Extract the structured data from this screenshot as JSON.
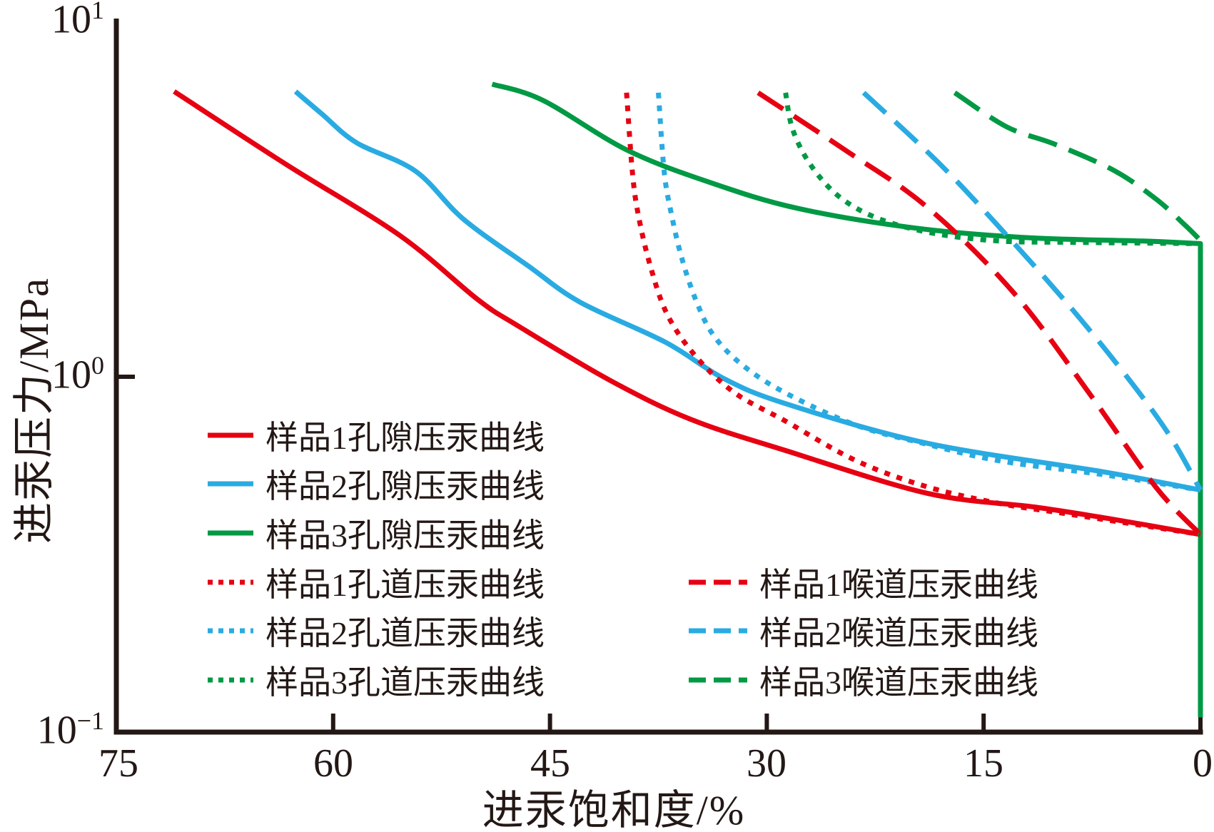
{
  "axes": {
    "x": {
      "title": "进汞饱和度/%",
      "ticks": [
        "75",
        "60",
        "45",
        "30",
        "15",
        "0"
      ],
      "values": [
        75,
        60,
        45,
        30,
        15,
        0
      ]
    },
    "y": {
      "title": "进汞压力/MPa",
      "ticks": [
        {
          "base": "10",
          "exp": "1"
        },
        {
          "base": "10",
          "exp": "0"
        },
        {
          "base": "10",
          "exp": "−1"
        }
      ],
      "mark_values": [
        1
      ]
    }
  },
  "colors": {
    "axis": "#231815",
    "red": "#e60012",
    "blue": "#29abe2",
    "green": "#009944"
  },
  "chart_data": {
    "type": "line",
    "title": "",
    "xlabel": "进汞饱和度/%",
    "ylabel": "进汞压力/MPa",
    "xlim": [
      75,
      0
    ],
    "ylim": [
      0.1,
      10
    ],
    "y_scale": "log",
    "grid": false,
    "legend_position": "inside-lower-left-two-columns",
    "series": [
      {
        "id": "sample1-pore",
        "label": "样品1孔隙压汞曲线",
        "color": "#e60012",
        "dash": "solid",
        "points": [
          [
            71.0,
            6.35
          ],
          [
            63.3,
            3.97
          ],
          [
            55.4,
            2.5
          ],
          [
            50.0,
            1.65
          ],
          [
            47.2,
            1.39
          ],
          [
            40.9,
            0.98
          ],
          [
            35.3,
            0.76
          ],
          [
            28.7,
            0.62
          ],
          [
            18.9,
            0.47
          ],
          [
            11.5,
            0.43
          ],
          [
            6.5,
            0.4
          ],
          [
            0,
            0.36
          ]
        ]
      },
      {
        "id": "sample2-pore",
        "label": "样品2孔隙压汞曲线",
        "color": "#29abe2",
        "dash": "solid",
        "points": [
          [
            62.6,
            6.35
          ],
          [
            60.8,
            5.5
          ],
          [
            58.4,
            4.56
          ],
          [
            54.3,
            3.79
          ],
          [
            51.0,
            2.78
          ],
          [
            46.5,
            2.05
          ],
          [
            42.9,
            1.62
          ],
          [
            37.0,
            1.25
          ],
          [
            33.0,
            0.99
          ],
          [
            28.7,
            0.84
          ],
          [
            18.9,
            0.65
          ],
          [
            6.7,
            0.54
          ],
          [
            0,
            0.48
          ]
        ]
      },
      {
        "id": "sample3-pore",
        "label": "样品3孔隙压汞曲线",
        "color": "#009944",
        "dash": "solid",
        "tail_straight": 1,
        "points": [
          [
            49.0,
            6.66
          ],
          [
            45.5,
            6.0
          ],
          [
            39.7,
            4.35
          ],
          [
            34.0,
            3.53
          ],
          [
            27.9,
            2.98
          ],
          [
            19.7,
            2.62
          ],
          [
            11.8,
            2.46
          ],
          [
            4.0,
            2.41
          ],
          [
            0,
            2.37
          ],
          [
            0,
            0.11
          ]
        ]
      },
      {
        "id": "sample1-channel",
        "label": "样品1孔道压汞曲线",
        "color": "#e60012",
        "dash": "dotted",
        "points": [
          [
            39.7,
            6.3
          ],
          [
            39.3,
            3.78
          ],
          [
            38.9,
            2.87
          ],
          [
            38.1,
            2.08
          ],
          [
            36.9,
            1.5
          ],
          [
            34.9,
            1.14
          ],
          [
            32.2,
            0.9
          ],
          [
            28.7,
            0.75
          ],
          [
            23.8,
            0.58
          ],
          [
            18.9,
            0.49
          ],
          [
            13.9,
            0.44
          ],
          [
            9.0,
            0.41
          ],
          [
            0,
            0.36
          ]
        ]
      },
      {
        "id": "sample2-channel",
        "label": "样品2孔道压汞曲线",
        "color": "#29abe2",
        "dash": "dotted",
        "points": [
          [
            37.5,
            6.3
          ],
          [
            37.1,
            3.78
          ],
          [
            36.6,
            2.87
          ],
          [
            35.9,
            2.17
          ],
          [
            34.9,
            1.64
          ],
          [
            33.7,
            1.31
          ],
          [
            31.7,
            1.08
          ],
          [
            28.7,
            0.9
          ],
          [
            23.8,
            0.73
          ],
          [
            19.2,
            0.65
          ],
          [
            13.9,
            0.58
          ],
          [
            6.7,
            0.53
          ],
          [
            0,
            0.48
          ]
        ]
      },
      {
        "id": "sample3-channel",
        "label": "样品3孔道压汞曲线",
        "color": "#009944",
        "dash": "dotted",
        "points": [
          [
            28.7,
            6.3
          ],
          [
            28.2,
            4.95
          ],
          [
            26.9,
            3.91
          ],
          [
            24.9,
            3.19
          ],
          [
            22.2,
            2.78
          ],
          [
            18.4,
            2.53
          ],
          [
            13.9,
            2.41
          ],
          [
            9.0,
            2.39
          ],
          [
            0,
            2.37
          ]
        ]
      },
      {
        "id": "sample1-throat",
        "label": "样品1喉道压汞曲线",
        "color": "#e60012",
        "dash": "dashed",
        "points": [
          [
            30.6,
            6.3
          ],
          [
            24.6,
            4.35
          ],
          [
            18.9,
            3.0
          ],
          [
            12.9,
            1.72
          ],
          [
            7.7,
            0.9
          ],
          [
            3.1,
            0.49
          ],
          [
            0,
            0.36
          ]
        ]
      },
      {
        "id": "sample2-throat",
        "label": "样品2喉道压汞曲线",
        "color": "#29abe2",
        "dash": "dashed",
        "points": [
          [
            23.3,
            6.3
          ],
          [
            18.0,
            3.96
          ],
          [
            13.4,
            2.5
          ],
          [
            9.0,
            1.57
          ],
          [
            5.0,
            0.99
          ],
          [
            2.1,
            0.68
          ],
          [
            0,
            0.48
          ]
        ]
      },
      {
        "id": "sample3-throat",
        "label": "样品3喉道压汞曲线",
        "color": "#009944",
        "dash": "dashed",
        "points": [
          [
            17.0,
            6.3
          ],
          [
            13.4,
            5.05
          ],
          [
            10.0,
            4.5
          ],
          [
            6.0,
            3.81
          ],
          [
            3.1,
            3.17
          ],
          [
            1.1,
            2.68
          ],
          [
            0,
            2.42
          ]
        ]
      }
    ]
  }
}
